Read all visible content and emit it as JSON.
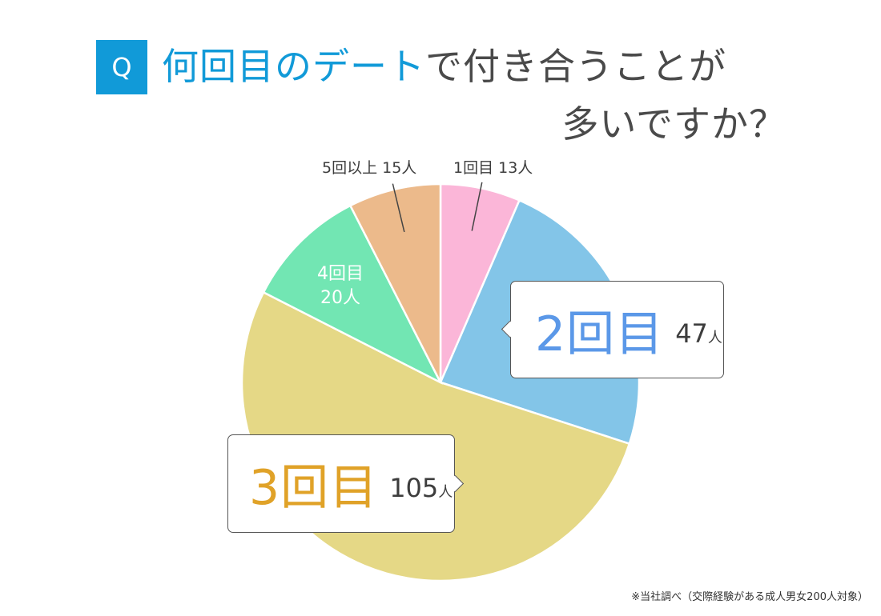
{
  "header": {
    "q_badge": "Q",
    "title_highlight": "何回目のデート",
    "title_rest": "で付き合うことが",
    "title_line2": "多いですか？"
  },
  "chart_data": {
    "type": "pie",
    "total": 200,
    "slices": [
      {
        "label": "1回目",
        "value": 13,
        "unit": "人",
        "color": "#fbb6d8"
      },
      {
        "label": "2回目",
        "value": 47,
        "unit": "人",
        "color": "#83c5e8"
      },
      {
        "label": "3回目",
        "value": 105,
        "unit": "人",
        "color": "#e5d886"
      },
      {
        "label": "4回目",
        "value": 20,
        "unit": "人",
        "color": "#72e6b3"
      },
      {
        "label": "5回以上",
        "value": 15,
        "unit": "人",
        "color": "#ecba8b"
      }
    ],
    "start": "top",
    "direction": "clockwise"
  },
  "labels": {
    "slice1": "1回目 13人",
    "slice5": "5回以上 15人",
    "slice4_line1": "4回目",
    "slice4_line2": "20人",
    "callout2_label": "2回目",
    "callout2_value": "47",
    "callout2_unit": "人",
    "callout3_label": "3回目",
    "callout3_value": "105",
    "callout3_unit": "人"
  },
  "footnote": "※当社調べ（交際経験がある成人男女200人対象）"
}
